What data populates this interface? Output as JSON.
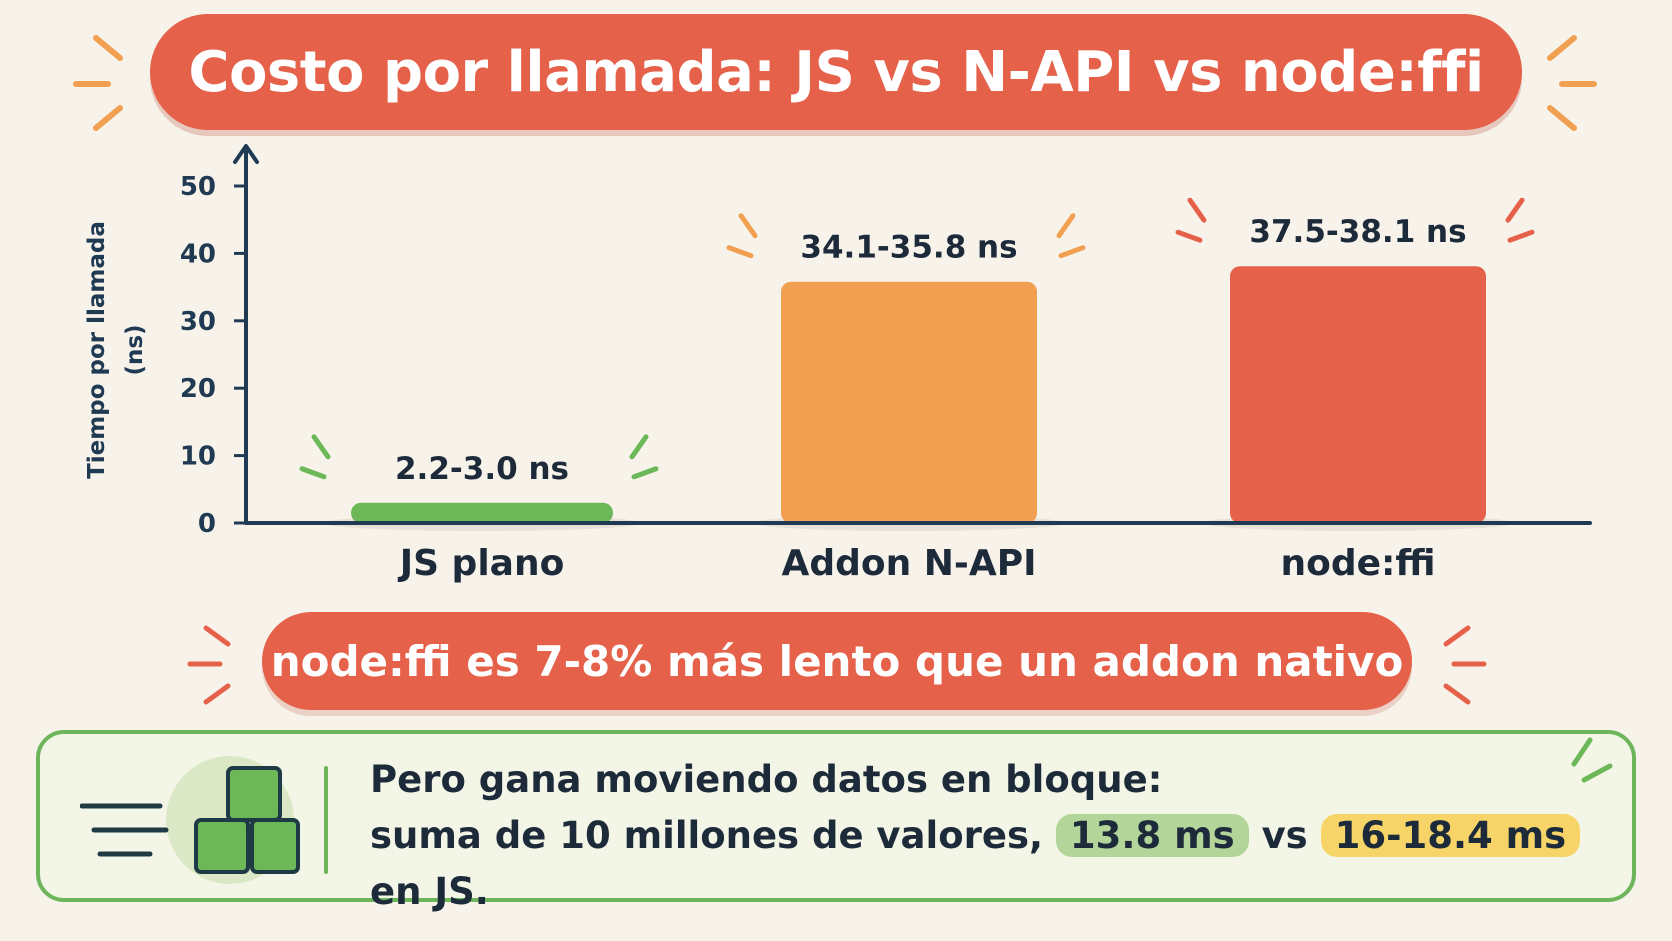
{
  "title": "Costo por llamada: JS vs N-API vs node:ffi",
  "chart_data": {
    "type": "bar",
    "title": "Costo por llamada: JS vs N-API vs node:ffi",
    "ylabel": "Tiempo por llamada (ns)",
    "xlabel": "",
    "ylim": [
      0,
      50
    ],
    "yticks": [
      "0",
      "10",
      "20",
      "30",
      "40",
      "50"
    ],
    "categories": [
      "JS plano",
      "Addon N-API",
      "node:ffi"
    ],
    "values": [
      3.0,
      35.8,
      38.1
    ],
    "data_labels": [
      "2.2-3.0 ns",
      "34.1-35.8 ns",
      "37.5-38.1 ns"
    ],
    "colors": [
      "#6cb858",
      "#f0a050",
      "#e5614a"
    ],
    "grid": false,
    "legend": "none"
  },
  "callout": "node:ffi es 7-8% más lento que un addon nativo",
  "info": {
    "line1": "Pero gana moviendo datos en bloque:",
    "line2_prefix": "suma de 10 millones de valores,",
    "ffi_time": "13.8 ms",
    "vs": "vs",
    "js_time": "16-18.4 ms",
    "suffix": "en JS."
  },
  "colors": {
    "accent_red": "#e5614a",
    "accent_orange": "#f0a050",
    "accent_green": "#6cb858",
    "axis": "#1f3a52"
  }
}
